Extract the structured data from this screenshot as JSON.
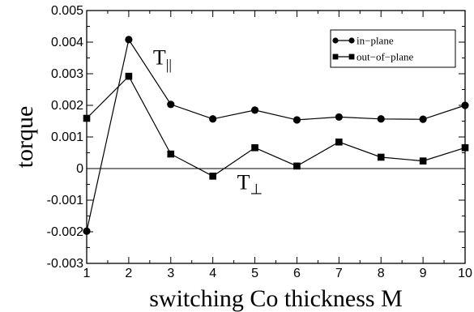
{
  "chart_data": {
    "type": "line",
    "title": "",
    "xlabel": "switching Co thickness M",
    "ylabel": "torque",
    "xlim": [
      1,
      10
    ],
    "ylim": [
      -0.003,
      0.005
    ],
    "x_ticks": [
      1,
      2,
      3,
      4,
      5,
      6,
      7,
      8,
      9,
      10
    ],
    "y_ticks": [
      -0.003,
      -0.002,
      -0.001,
      0,
      0.001,
      0.002,
      0.003,
      0.004,
      0.005
    ],
    "y_tick_labels": [
      "-0.003",
      "-0.002",
      "-0.001",
      "0",
      "0.001",
      "0.002",
      "0.003",
      "0.004",
      "0.005"
    ],
    "grid": false,
    "zero_line": true,
    "legend_position": "top-right",
    "x": [
      1,
      2,
      3,
      4,
      5,
      6,
      7,
      8,
      9,
      10
    ],
    "series": [
      {
        "name": "in−plane",
        "marker": "circle",
        "color": "#000000",
        "values": [
          -0.00198,
          0.00408,
          0.00203,
          0.00157,
          0.00185,
          0.00154,
          0.00163,
          0.00157,
          0.00156,
          0.002
        ]
      },
      {
        "name": "out−of−plane",
        "marker": "square",
        "color": "#000000",
        "values": [
          0.00159,
          0.00292,
          0.00046,
          -0.00024,
          0.00066,
          8e-05,
          0.00084,
          0.00036,
          0.00024,
          0.00066
        ]
      }
    ],
    "annotations": [
      {
        "main": "T",
        "sub": "||",
        "ref_x": 2,
        "ref_y": 0.0033
      },
      {
        "main": "T",
        "sub": "⊥",
        "ref_x": 4,
        "ref_y": -0.00065
      }
    ]
  }
}
